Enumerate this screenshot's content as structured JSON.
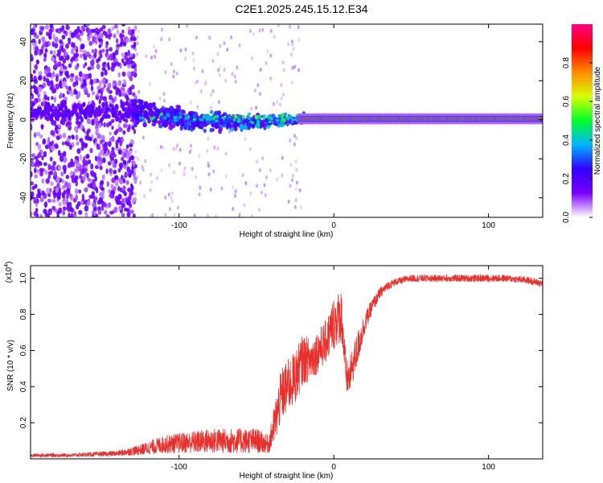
{
  "title": "C2E1.2025.245.15.12.E34",
  "colors": {
    "snr_line": "#e8302c",
    "colormap": [
      "#ffffff",
      "#7a00ff",
      "#2e00ff",
      "#00b4ff",
      "#00ff2a",
      "#d6ff00",
      "#ff8c00",
      "#ff0000",
      "#ff0080"
    ]
  },
  "chart_data": [
    {
      "type": "heatmap",
      "title": "",
      "xlabel": "Height of straight line (km)",
      "ylabel": "Frequency (Hz)",
      "xlim": [
        -196,
        135
      ],
      "ylim": [
        -50,
        49
      ],
      "x_ticks": [
        -100,
        0,
        100
      ],
      "x_tick_labels": [
        "-100",
        "0",
        "100"
      ],
      "y_ticks": [
        -40,
        -20,
        0,
        20,
        40
      ],
      "y_tick_labels": [
        "-40",
        "-20",
        "0",
        "20",
        "40"
      ],
      "colorbar": {
        "label": "Normalized spectral amplitude",
        "range": [
          0,
          1
        ],
        "ticks": [
          0.0,
          0.2,
          0.4,
          0.6,
          0.8
        ],
        "tick_labels": [
          "0.0",
          "0.2",
          "0.4",
          "0.6",
          "0.8"
        ]
      },
      "regions": [
        {
          "x": [
            -196,
            -130
          ],
          "freq": [
            -50,
            49
          ],
          "amplitude": 0.12,
          "pattern": "broadband noise"
        },
        {
          "x": [
            -130,
            -20
          ],
          "freq": [
            -15,
            12
          ],
          "amplitude": 0.3,
          "pattern": "band converging to ~0 Hz"
        },
        {
          "x": [
            -20,
            135
          ],
          "freq": [
            -1,
            2
          ],
          "amplitude": 0.95,
          "pattern": "narrow tone at ~0 Hz"
        }
      ]
    },
    {
      "type": "line",
      "title": "",
      "xlabel": "Height of straight line (km)",
      "ylabel": "SNR (10 * v/v)",
      "y_scale_label": "(x10",
      "y_scale_exponent": "4",
      "y_scale_suffix": ")",
      "xlim": [
        -196,
        135
      ],
      "ylim": [
        0,
        1.07
      ],
      "x_ticks": [
        -100,
        0,
        100
      ],
      "x_tick_labels": [
        "-100",
        "0",
        "100"
      ],
      "y_ticks": [
        0.2,
        0.4,
        0.6,
        0.8,
        1.0
      ],
      "y_tick_labels": [
        "0.2",
        "0.4",
        "0.6",
        "0.8",
        "1.0"
      ],
      "series": [
        {
          "name": "SNR",
          "x": [
            -196,
            -170,
            -140,
            -125,
            -110,
            -95,
            -80,
            -65,
            -50,
            -42,
            -38,
            -34,
            -30,
            -25,
            -20,
            -15,
            -10,
            -5,
            0,
            5,
            8,
            10,
            15,
            20,
            25,
            30,
            35,
            40,
            50,
            70,
            90,
            110,
            125,
            135
          ],
          "values": [
            0.02,
            0.02,
            0.03,
            0.05,
            0.08,
            0.09,
            0.1,
            0.1,
            0.1,
            0.08,
            0.2,
            0.35,
            0.4,
            0.45,
            0.55,
            0.55,
            0.6,
            0.65,
            0.75,
            0.8,
            0.45,
            0.45,
            0.6,
            0.75,
            0.85,
            0.92,
            0.96,
            0.98,
            1.0,
            1.0,
            1.0,
            1.0,
            0.99,
            0.97
          ],
          "amplitude": [
            0.01,
            0.01,
            0.015,
            0.03,
            0.05,
            0.06,
            0.07,
            0.07,
            0.07,
            0.05,
            0.12,
            0.15,
            0.15,
            0.15,
            0.14,
            0.12,
            0.12,
            0.12,
            0.15,
            0.15,
            0.1,
            0.1,
            0.1,
            0.06,
            0.04,
            0.03,
            0.025,
            0.02,
            0.02,
            0.02,
            0.02,
            0.02,
            0.02,
            0.02
          ]
        }
      ]
    }
  ]
}
